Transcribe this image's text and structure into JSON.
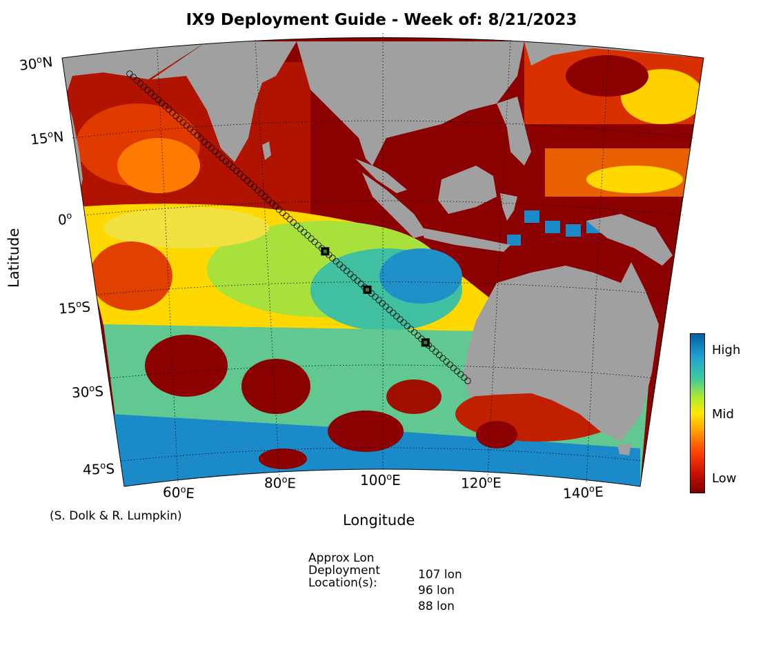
{
  "title": "IX9 Deployment Guide - Week of: 8/21/2023",
  "axes": {
    "xlabel": "Longitude",
    "ylabel": "Latitude",
    "lat_ticks": [
      {
        "value": "30",
        "suffix": "N"
      },
      {
        "value": "15",
        "suffix": "N"
      },
      {
        "value": "0",
        "suffix": ""
      },
      {
        "value": "15",
        "suffix": "S"
      },
      {
        "value": "30",
        "suffix": "S"
      },
      {
        "value": "45",
        "suffix": "S"
      }
    ],
    "lon_ticks": [
      {
        "value": "60",
        "suffix": "E"
      },
      {
        "value": "80",
        "suffix": "E"
      },
      {
        "value": "100",
        "suffix": "E"
      },
      {
        "value": "120",
        "suffix": "E"
      },
      {
        "value": "140",
        "suffix": "E"
      }
    ]
  },
  "credit": "(S. Dolk & R. Lumpkin)",
  "colorbar": {
    "high": "High",
    "mid": "Mid",
    "low": "Low",
    "colors": [
      "#800000",
      "#ff4000",
      "#ffe800",
      "#40c8a0",
      "#0060a0"
    ]
  },
  "deployment": {
    "line1": "Approx Lon",
    "line2": "Deployment",
    "line3": "Location(s):",
    "locations": [
      "107 lon",
      "96 lon",
      "88 lon"
    ]
  },
  "map_extent": {
    "lon_min": 50,
    "lon_max": 150,
    "lat_min": -50,
    "lat_max": 30
  },
  "track": {
    "start": {
      "lon": 51,
      "lat": 28
    },
    "end": {
      "lon": 115,
      "lat": -31
    },
    "deployment_lons": [
      88,
      96,
      107
    ]
  },
  "colors": {
    "land": "#a0a0a0",
    "background": "#ffffff"
  }
}
